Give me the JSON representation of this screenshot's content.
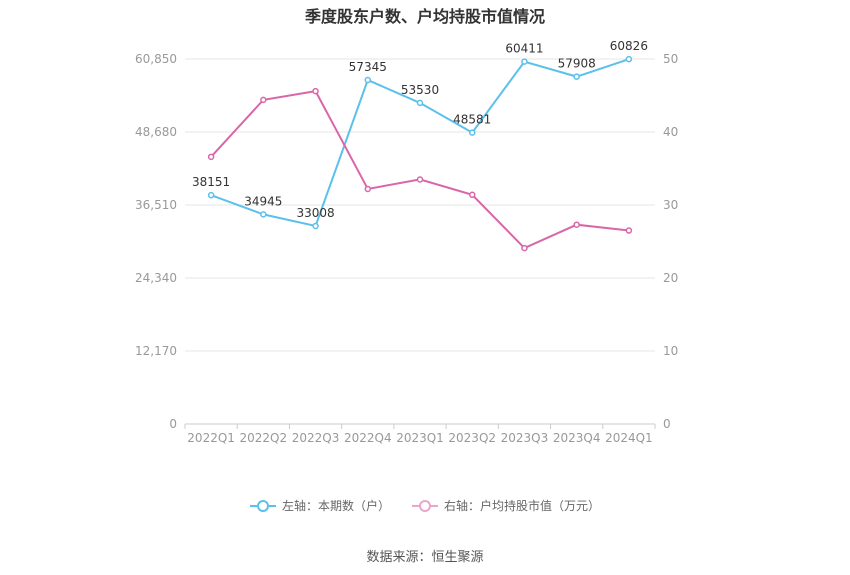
{
  "chart_data": {
    "type": "line",
    "title": "季度股东户数、户均持股市值情况",
    "categories": [
      "2022Q1",
      "2022Q2",
      "2022Q3",
      "2022Q4",
      "2023Q1",
      "2023Q2",
      "2023Q3",
      "2023Q4",
      "2024Q1"
    ],
    "y_left": {
      "ticks": [
        0,
        12170,
        24340,
        36510,
        48680,
        60850
      ],
      "tick_labels": [
        "0",
        "12,170",
        "24,340",
        "36,510",
        "48,680",
        "60,850"
      ],
      "range": [
        0,
        60850
      ]
    },
    "y_right": {
      "ticks": [
        0,
        10,
        20,
        30,
        40,
        50
      ],
      "tick_labels": [
        "0",
        "10",
        "20",
        "30",
        "40",
        "50"
      ],
      "range": [
        0,
        50
      ]
    },
    "series": [
      {
        "name": "左轴：本期数（户）",
        "axis": "left",
        "color": "#5bc0eb",
        "values": [
          38151,
          34945,
          33008,
          57345,
          53530,
          48581,
          60411,
          57908,
          60826
        ],
        "labels": [
          "38151",
          "34945",
          "33008",
          "57345",
          "53530",
          "48581",
          "60411",
          "57908",
          "60826"
        ]
      },
      {
        "name": "右轴：户均持股市值（万元）",
        "axis": "right",
        "color": "#d966a8",
        "values": [
          36.6,
          44.4,
          45.6,
          32.2,
          33.5,
          31.4,
          24.1,
          27.3,
          26.5
        ]
      }
    ],
    "grid": true,
    "legend_position": "bottom"
  },
  "source": "数据来源：恒生聚源"
}
